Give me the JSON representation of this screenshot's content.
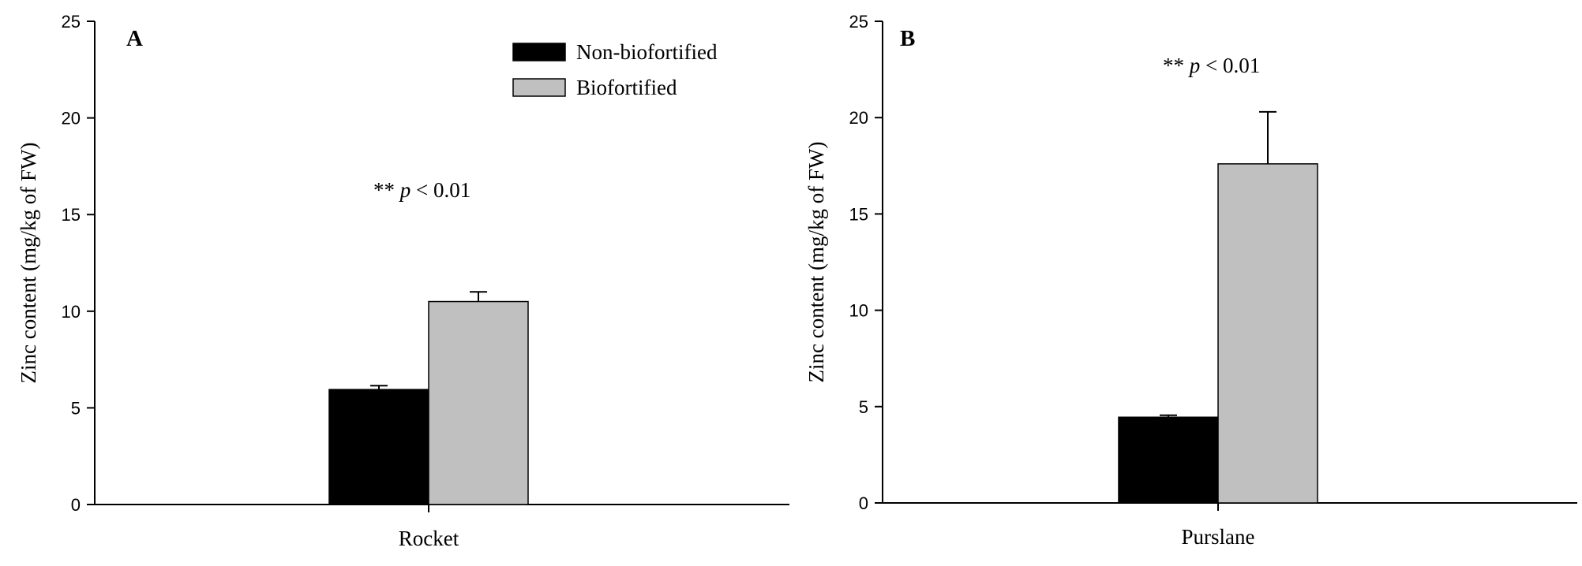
{
  "chart_data": [
    {
      "type": "bar",
      "panel_label": "A",
      "categories": [
        "Rocket"
      ],
      "ylabel": "Zinc content (mg/kg of FW)",
      "xlabel": "",
      "ylim": [
        0,
        25
      ],
      "yticks": [
        0,
        5,
        10,
        15,
        20,
        25
      ],
      "series": [
        {
          "name": "Non-biofortified",
          "values": [
            5.95
          ],
          "errors": [
            0.2
          ],
          "color": "#000000"
        },
        {
          "name": "Biofortified",
          "values": [
            10.5
          ],
          "errors": [
            0.5
          ],
          "color": "#c0c0c0"
        }
      ],
      "annotation": {
        "stars": "**",
        "p_symbol": "p",
        "comparison": " < 0.01"
      },
      "legend": {
        "visible": true,
        "placement": "top-right"
      },
      "grid": false
    },
    {
      "type": "bar",
      "panel_label": "B",
      "categories": [
        "Purslane"
      ],
      "ylabel": "Zinc content (mg/kg of FW)",
      "xlabel": "",
      "ylim": [
        0,
        25
      ],
      "yticks": [
        0,
        5,
        10,
        15,
        20,
        25
      ],
      "series": [
        {
          "name": "Non-biofortified",
          "values": [
            4.45
          ],
          "errors": [
            0.1
          ],
          "color": "#000000"
        },
        {
          "name": "Biofortified",
          "values": [
            17.6
          ],
          "errors": [
            2.7
          ],
          "color": "#c0c0c0"
        }
      ],
      "annotation": {
        "stars": "**",
        "p_symbol": "p",
        "comparison": " < 0.01"
      },
      "legend": {
        "visible": false
      },
      "grid": false
    }
  ]
}
